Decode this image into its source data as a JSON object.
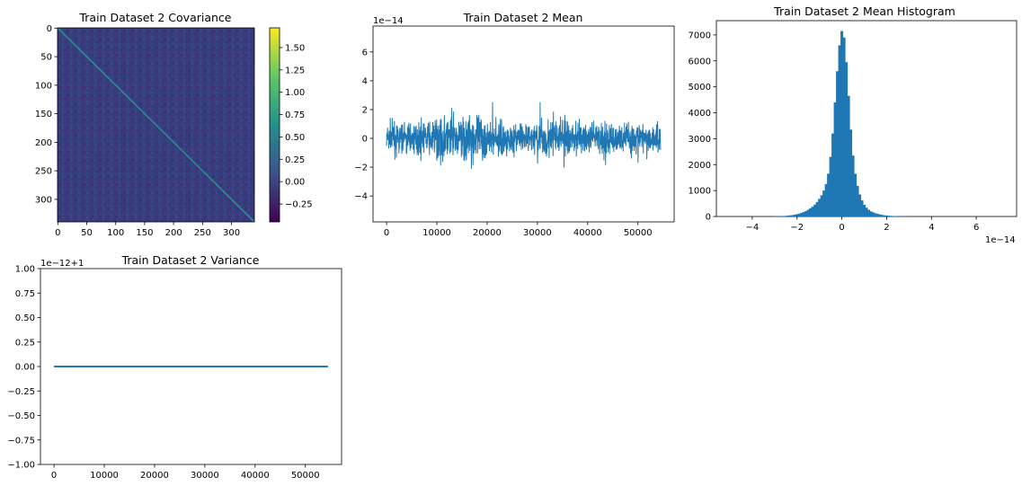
{
  "chart_data": [
    {
      "id": "covariance",
      "type": "heatmap",
      "title": "Train Dataset 2 Covariance",
      "matrix_size": 340,
      "colormap": "viridis",
      "x_ticks": [
        "0",
        "50",
        "100",
        "150",
        "200",
        "250",
        "300"
      ],
      "x_tick_values": [
        0,
        50,
        100,
        150,
        200,
        250,
        300
      ],
      "y_ticks": [
        "0",
        "50",
        "100",
        "150",
        "200",
        "250",
        "300"
      ],
      "y_tick_values": [
        0,
        50,
        100,
        150,
        200,
        250,
        300
      ],
      "colorbar": {
        "range": [
          -0.45,
          1.72
        ],
        "ticks": [
          "−0.25",
          "0.00",
          "0.25",
          "0.50",
          "0.75",
          "1.00",
          "1.25",
          "1.50"
        ],
        "tick_values": [
          -0.25,
          0,
          0.25,
          0.5,
          0.75,
          1.0,
          1.25,
          1.5
        ]
      },
      "diagonal_value": 1.0,
      "background_value": -0.1,
      "colors": [
        "#440154",
        "#3b528b",
        "#21918c",
        "#5ec962",
        "#fde725"
      ]
    },
    {
      "id": "mean",
      "type": "line",
      "title": "Train Dataset 2 Mean",
      "offset_text": "1e−14",
      "xlim": [
        -2700,
        57200
      ],
      "ylim": [
        -5.8,
        7.8
      ],
      "x_ticks": [
        "0",
        "10000",
        "20000",
        "30000",
        "40000",
        "50000"
      ],
      "x_tick_values": [
        0,
        10000,
        20000,
        30000,
        40000,
        50000
      ],
      "y_ticks": [
        "6",
        "4",
        "2",
        "0",
        "−2",
        "−4"
      ],
      "y_tick_values": [
        6,
        4,
        2,
        0,
        -2,
        -4
      ],
      "n_points": 54500,
      "color": "#1f77b4"
    },
    {
      "id": "histogram",
      "type": "bar",
      "title": "Train Dataset 2 Mean Histogram",
      "offset_text": "1e−14",
      "xlim": [
        -5.6,
        7.8
      ],
      "ylim": [
        0,
        7550
      ],
      "x_ticks": [
        "−4",
        "−2",
        "0",
        "2",
        "4",
        "6"
      ],
      "x_tick_values": [
        -4,
        -2,
        0,
        2,
        4,
        6
      ],
      "y_ticks": [
        "0",
        "1000",
        "2000",
        "3000",
        "4000",
        "5000",
        "6000",
        "7000"
      ],
      "y_tick_values": [
        0,
        1000,
        2000,
        3000,
        4000,
        5000,
        6000,
        7000
      ],
      "bin_width": 0.122,
      "bin_centers": [
        -3.0,
        -2.9,
        -2.8,
        -2.7,
        -2.6,
        -2.5,
        -2.4,
        -2.3,
        -2.2,
        -2.1,
        -2.0,
        -1.9,
        -1.8,
        -1.7,
        -1.6,
        -1.5,
        -1.4,
        -1.3,
        -1.2,
        -1.1,
        -1.0,
        -0.9,
        -0.8,
        -0.7,
        -0.6,
        -0.5,
        -0.4,
        -0.3,
        -0.2,
        -0.1,
        0.0,
        0.1,
        0.2,
        0.3,
        0.4,
        0.5,
        0.6,
        0.7,
        0.8,
        0.9,
        1.0,
        1.1,
        1.2,
        1.3,
        1.4,
        1.5,
        1.6,
        1.7,
        1.8,
        1.9,
        2.0,
        2.1,
        2.2,
        2.3,
        2.4,
        2.5,
        2.6,
        2.7,
        2.8,
        2.9,
        3.0
      ],
      "values": [
        5,
        8,
        10,
        15,
        20,
        25,
        35,
        45,
        55,
        70,
        90,
        110,
        140,
        170,
        210,
        260,
        320,
        380,
        460,
        560,
        680,
        820,
        1000,
        1250,
        1650,
        2300,
        3200,
        4400,
        5600,
        6600,
        7150,
        6900,
        5950,
        4650,
        3350,
        2350,
        1650,
        1180,
        850,
        620,
        450,
        340,
        260,
        200,
        160,
        125,
        100,
        80,
        62,
        48,
        38,
        30,
        23,
        18,
        14,
        11,
        8,
        6,
        5,
        4,
        3
      ],
      "color": "#1f77b4"
    },
    {
      "id": "variance",
      "type": "line",
      "title": "Train Dataset 2 Variance",
      "offset_text": "1e−12+1",
      "xlim": [
        -2700,
        57200
      ],
      "ylim": [
        -1.0,
        1.0
      ],
      "x_ticks": [
        "0",
        "10000",
        "20000",
        "30000",
        "40000",
        "50000"
      ],
      "x_tick_values": [
        0,
        10000,
        20000,
        30000,
        40000,
        50000
      ],
      "y_ticks": [
        "1.00",
        "0.75",
        "0.50",
        "0.25",
        "0.00",
        "−0.25",
        "−0.50",
        "−0.75",
        "−1.00"
      ],
      "y_tick_values": [
        1.0,
        0.75,
        0.5,
        0.25,
        0.0,
        -0.25,
        -0.5,
        -0.75,
        -1.0
      ],
      "x": [
        0,
        54500
      ],
      "y": [
        0,
        0
      ],
      "color": "#1f77b4"
    }
  ]
}
